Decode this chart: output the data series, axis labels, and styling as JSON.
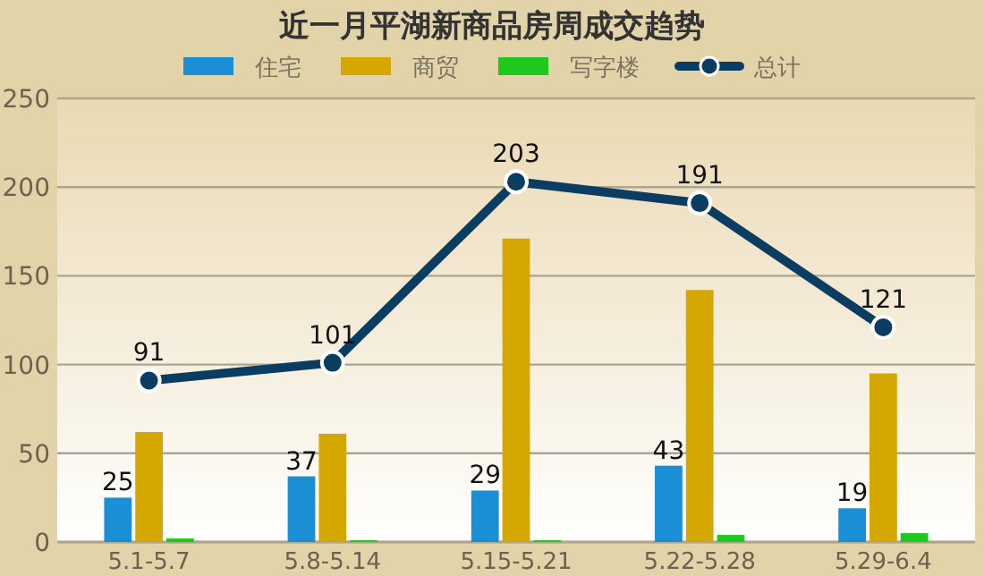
{
  "chart_data": {
    "type": "bar",
    "title": "近一月平湖新商品房周成交趋势",
    "categories": [
      "5.1-5.7",
      "5.8-5.14",
      "5.15-5.21",
      "5.22-5.28",
      "5.29-6.4"
    ],
    "series": [
      {
        "name": "住宅",
        "color": "#1a8fd6",
        "values": [
          25,
          37,
          29,
          43,
          19
        ],
        "value_labels": [
          "25",
          "37",
          "29",
          "43",
          "19"
        ]
      },
      {
        "name": "商贸",
        "color": "#d4a800",
        "values": [
          62,
          61,
          171,
          142,
          95
        ]
      },
      {
        "name": "写字楼",
        "color": "#1ec81e",
        "values": [
          2,
          1,
          1,
          4,
          5
        ]
      },
      {
        "name": "总计",
        "type": "line",
        "color": "#0b3d62",
        "marker": "circle",
        "values": [
          91,
          101,
          203,
          191,
          121
        ],
        "value_labels": [
          "91",
          "101",
          "203",
          "191",
          "121"
        ]
      }
    ],
    "ylim": [
      0,
      250
    ],
    "yticks": [
      0,
      50,
      100,
      150,
      200,
      250
    ],
    "grid": "y",
    "legend": "top"
  }
}
